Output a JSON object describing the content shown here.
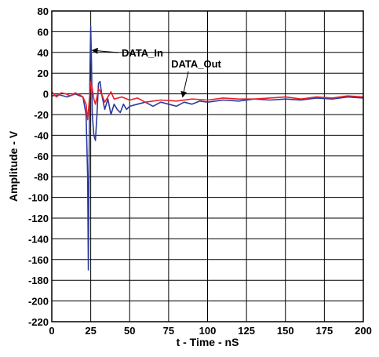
{
  "chart_data": {
    "type": "line",
    "xlabel": "t - Time - nS",
    "ylabel": "Amplitude - V",
    "xlim": [
      0,
      200
    ],
    "ylim": [
      -220,
      80
    ],
    "xticks": [
      0,
      25,
      50,
      75,
      100,
      125,
      150,
      175,
      200
    ],
    "yticks": [
      80,
      60,
      40,
      20,
      0,
      -20,
      -40,
      -60,
      -80,
      -100,
      -120,
      -140,
      -160,
      -180,
      -200,
      -220
    ],
    "grid": true,
    "series": [
      {
        "name": "DATA_In",
        "color": "#2b3a9e",
        "x": [
          0,
          5,
          10,
          15,
          18,
          20,
          22,
          23,
          23.5,
          24,
          24.5,
          25,
          25.5,
          26,
          27,
          28,
          29,
          30,
          31,
          32,
          34,
          36,
          38,
          40,
          42,
          44,
          46,
          48,
          50,
          55,
          60,
          65,
          70,
          75,
          80,
          85,
          90,
          95,
          100,
          110,
          120,
          130,
          140,
          150,
          160,
          170,
          180,
          190,
          200
        ],
        "y": [
          -2,
          -1,
          -3,
          0,
          -2,
          -3,
          -20,
          -80,
          -170,
          -60,
          20,
          65,
          30,
          -20,
          -40,
          -45,
          -20,
          10,
          12,
          0,
          -15,
          -5,
          -20,
          -10,
          -15,
          -18,
          -10,
          -15,
          -12,
          -10,
          -8,
          -12,
          -8,
          -10,
          -12,
          -8,
          -10,
          -7,
          -8,
          -6,
          -7,
          -5,
          -6,
          -5,
          -6,
          -4,
          -5,
          -3,
          -4
        ]
      },
      {
        "name": "DATA_Out",
        "color": "#e8202a",
        "x": [
          0,
          3,
          6,
          9,
          12,
          15,
          18,
          20,
          22,
          23,
          24,
          25,
          26,
          27,
          28,
          29,
          30,
          32,
          34,
          36,
          38,
          40,
          45,
          50,
          55,
          60,
          70,
          80,
          90,
          100,
          110,
          120,
          130,
          140,
          150,
          160,
          170,
          180,
          190,
          200
        ],
        "y": [
          2,
          -3,
          1,
          0,
          -2,
          1,
          -1,
          -3,
          -10,
          -25,
          -8,
          12,
          5,
          -5,
          -10,
          -3,
          5,
          0,
          -8,
          -3,
          2,
          -5,
          -3,
          -6,
          -4,
          -8,
          -6,
          -7,
          -5,
          -6,
          -4,
          -5,
          -5,
          -4,
          -3,
          -5,
          -3,
          -4,
          -2,
          -3
        ]
      }
    ],
    "annotations": [
      {
        "text": "DATA_In",
        "target_series": "DATA_In",
        "target_x": 26,
        "target_y": 42
      },
      {
        "text": "DATA_Out",
        "target_series": "DATA_Out",
        "target_x": 84,
        "target_y": -3
      }
    ]
  }
}
